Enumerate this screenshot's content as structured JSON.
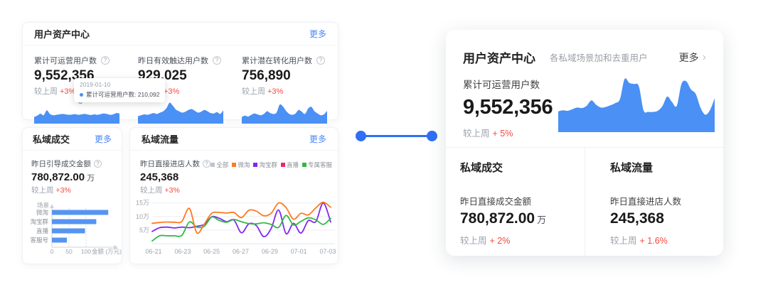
{
  "ui": {
    "help_glyph": "?",
    "chevron_glyph": "›"
  },
  "colors": {
    "primary_blue": "#4a90f5",
    "link_blue": "#4c85f6",
    "connector_blue": "#2f6ff2",
    "delta_red": "#f5483f",
    "bar_blue": "#5694f2"
  },
  "overview_card": {
    "title": "用户资产中心",
    "more_label": "更多",
    "metrics": [
      {
        "label": "累计可运营用户数",
        "value": "9,552,356",
        "compare_label": "较上周",
        "delta": "+3%"
      },
      {
        "label": "昨日有效触达用户数",
        "value": "929,025",
        "compare_label": "较上周",
        "delta": "+3%"
      },
      {
        "label": "累计潜在转化用户数",
        "value": "756,890",
        "compare_label": "较上周",
        "delta": "+3%"
      }
    ],
    "tooltip": {
      "date": "2019-01-10",
      "series_label": "累计可运营用户数:",
      "value": "210,092"
    }
  },
  "deal_card": {
    "title": "私域成交",
    "more_label": "更多",
    "metric": {
      "label": "昨日引导成交金额",
      "value": "780,872.00",
      "unit": "万",
      "compare_label": "较上周",
      "delta": "+3%"
    }
  },
  "traffic_card": {
    "title": "私域流量",
    "more_label": "更多",
    "metric": {
      "label": "昨日直接进店人数",
      "value": "245,368",
      "compare_label": "较上周",
      "delta": "+3%"
    },
    "legend": [
      {
        "label": "全部",
        "color": "#c0c4cc"
      },
      {
        "label": "微淘",
        "color": "#ff7a1e"
      },
      {
        "label": "淘宝群",
        "color": "#8228f0"
      },
      {
        "label": "直播",
        "color": "#f5226b"
      },
      {
        "label": "专属客服",
        "color": "#2fb944"
      }
    ]
  },
  "detail_card": {
    "title": "用户资产中心",
    "subtitle": "各私域场景加和去重用户",
    "more_label": "更多",
    "metric": {
      "label": "累计可运营用户数",
      "value": "9,552,356",
      "compare_label": "较上周",
      "delta": "+ 5%"
    },
    "deal": {
      "title": "私域成交",
      "label": "昨日直接成交金额",
      "value": "780,872.00",
      "unit": "万",
      "compare_label": "较上周",
      "delta": "+ 2%"
    },
    "traffic": {
      "title": "私域流量",
      "label": "昨日直接进店人数",
      "value": "245,368",
      "compare_label": "较上周",
      "delta": "+ 1.6%"
    }
  },
  "chart_data": [
    {
      "type": "area",
      "name": "overview-spark-cumulative-users",
      "color": "#4a90f5",
      "values": [
        30,
        36,
        45,
        38,
        60,
        44,
        38,
        40,
        42,
        44,
        42,
        40,
        41,
        43,
        40,
        42,
        44,
        41,
        39,
        42,
        40,
        43,
        46,
        44,
        40,
        42,
        48,
        46
      ]
    },
    {
      "type": "area",
      "name": "overview-spark-reached-users",
      "color": "#4a90f5",
      "values": [
        34,
        38,
        42,
        40,
        44,
        48,
        44,
        50,
        56,
        70,
        95,
        82,
        64,
        56,
        50,
        54,
        62,
        66,
        58,
        50,
        54,
        62,
        56,
        48,
        46,
        52,
        44,
        60
      ]
    },
    {
      "type": "area",
      "name": "overview-spark-conversion-users",
      "color": "#4a90f5",
      "values": [
        30,
        36,
        32,
        40,
        46,
        42,
        38,
        44,
        56,
        48,
        44,
        50,
        86,
        78,
        58,
        44,
        40,
        46,
        62,
        54,
        44,
        68,
        76,
        56,
        46,
        38,
        42,
        58
      ]
    },
    {
      "type": "bar",
      "title": "昨日引导成交金额",
      "color": "#5694f2",
      "categories": [
        "微淘",
        "淘宝群",
        "直播",
        "客服号"
      ],
      "values": [
        165,
        130,
        97,
        44
      ],
      "xticks": [
        0,
        50,
        100
      ],
      "xlabel": "金额 (万元)",
      "ylabel": "场景",
      "xlim": [
        0,
        200
      ]
    },
    {
      "type": "line",
      "title": "昨日直接进店人数",
      "x_labels": [
        "06-21",
        "06-23",
        "06-25",
        "06-27",
        "06-29",
        "07-01",
        "07-03"
      ],
      "yticks": [
        [
          5,
          "5万"
        ],
        [
          10,
          "10万"
        ],
        [
          15,
          "15万"
        ]
      ],
      "ylim": [
        0,
        16.5
      ],
      "grid": true,
      "series": [
        {
          "name": "淘宝群",
          "color": "#8228f0",
          "values": [
            4.5,
            5.9,
            6.1,
            5.8,
            6.1,
            5.9,
            6.4,
            7.1,
            9.9,
            9.4,
            8.1,
            8.7,
            4.0,
            7.3,
            6.7,
            2.6,
            5.6,
            12.4,
            3.7,
            7.5,
            3.9,
            8.5,
            8.1,
            15.0,
            8.0
          ]
        },
        {
          "name": "专属客服",
          "color": "#2fb944",
          "values": [
            1.0,
            2.9,
            2.9,
            2.9,
            3.1,
            8.0,
            6.1,
            6.4,
            9.8,
            8.6,
            7.9,
            8.9,
            8.1,
            7.4,
            7.3,
            7.7,
            7.1,
            6.0,
            10.4,
            6.9,
            8.2,
            9.5,
            8.8,
            7.1,
            9.3
          ]
        },
        {
          "name": "微淘",
          "color": "#ff7a1e",
          "values": [
            7.5,
            7.8,
            8.0,
            7.9,
            8.2,
            13.0,
            4.0,
            7.2,
            11.2,
            11.5,
            11.3,
            11.5,
            9.6,
            12.3,
            12.0,
            10.3,
            11.2,
            15.0,
            13.3,
            9.0,
            11.2,
            10.6,
            13.2,
            15.3,
            13.4
          ]
        }
      ]
    },
    {
      "type": "area",
      "name": "detail-area-cumulative-users",
      "color": "#4a90f5",
      "values": [
        38,
        40,
        39,
        42,
        45,
        44,
        48,
        58,
        50,
        45,
        46,
        49,
        53,
        60,
        97,
        90,
        88,
        84,
        40,
        37,
        37,
        39,
        48,
        65,
        55,
        48,
        88,
        93,
        78,
        70,
        45,
        32,
        40,
        62
      ]
    }
  ]
}
